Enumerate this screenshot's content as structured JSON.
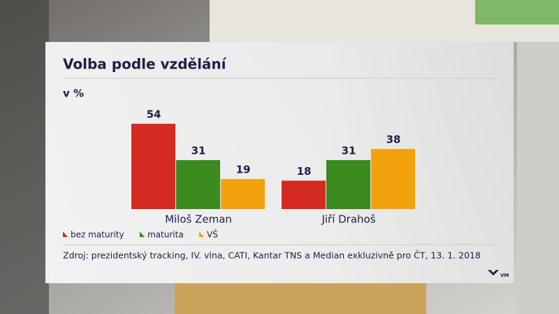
{
  "chart_data": {
    "type": "bar",
    "title": "Volba podle vzdělání",
    "subtitle": "v %",
    "categories": [
      "Miloš Zeman",
      "Jiří Drahoš"
    ],
    "series": [
      {
        "name": "bez maturity",
        "color": "#d42a22",
        "values": [
          54,
          18
        ]
      },
      {
        "name": "maturita",
        "color": "#3a8a1e",
        "values": [
          31,
          31
        ]
      },
      {
        "name": "VŠ",
        "color": "#f2a20c",
        "values": [
          19,
          38
        ]
      }
    ],
    "source": "Zdroj: prezidentský tracking, IV. vlna, CATI, Kantar TNS a Median exkluzivně pro ČT, 13. 1. 2018",
    "logo": "VM"
  }
}
